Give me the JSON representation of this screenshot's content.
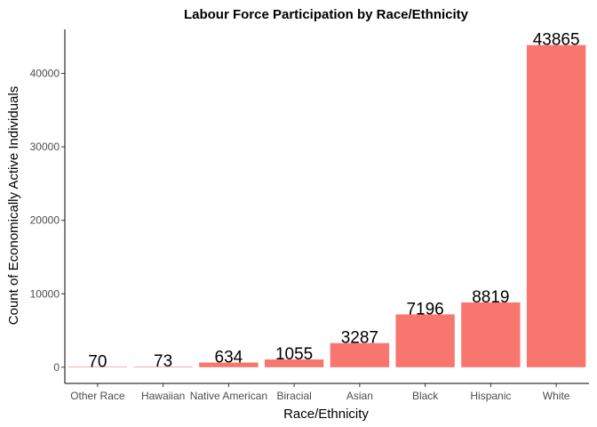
{
  "chart_data": {
    "type": "bar",
    "title": "Labour Force Participation by Race/Ethnicity",
    "xlabel": "Race/Ethnicity",
    "ylabel": "Count of Economically Active Individuals",
    "categories": [
      "Other Race",
      "Hawaiian",
      "Native American",
      "Biracial",
      "Asian",
      "Black",
      "Hispanic",
      "White"
    ],
    "values": [
      70,
      73,
      634,
      1055,
      3287,
      7196,
      8819,
      43865
    ],
    "yticks": [
      0,
      10000,
      20000,
      30000,
      40000
    ],
    "ylim": [
      -2200,
      46000
    ],
    "grid": false,
    "legend": "none",
    "bar_color": "#F8766D",
    "axis_color": "#000000",
    "tick_label_color": "#4D4D4D"
  }
}
